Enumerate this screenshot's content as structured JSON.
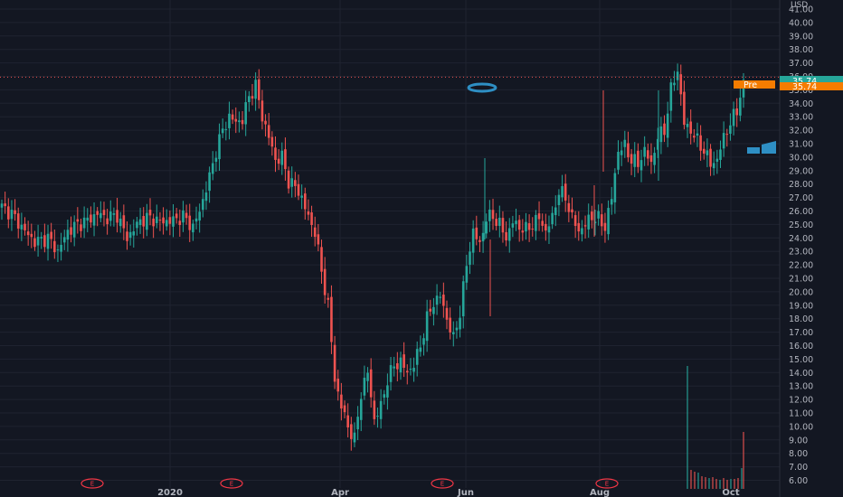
{
  "colors": {
    "background": "#131722",
    "grid": "#1f2330",
    "up": "#26a69a",
    "down": "#ef5350",
    "axis_text": "#b2b5be",
    "last_price_bg": "#26a69a",
    "pre_bg": "#f57c00",
    "earnings": "#f23645",
    "marker": "#2e8fc4"
  },
  "axis": {
    "unit_label": "USD",
    "y_ticks": [
      "41.00",
      "40.00",
      "39.00",
      "38.00",
      "37.00",
      "36.00",
      "35.00",
      "34.00",
      "33.00",
      "32.00",
      "31.00",
      "30.00",
      "29.00",
      "28.00",
      "27.00",
      "26.00",
      "25.00",
      "24.00",
      "23.00",
      "22.00",
      "21.00",
      "20.00",
      "19.00",
      "18.00",
      "17.00",
      "16.00",
      "15.00",
      "14.00",
      "13.00",
      "12.00",
      "11.00",
      "10.00",
      "9.00",
      "8.00",
      "7.00",
      "6.00"
    ],
    "x_ticks": [
      "2020",
      "Apr",
      "Jun",
      "Aug",
      "Oct"
    ]
  },
  "price_labels": {
    "last_price": "35.74",
    "pre_label": "Pre",
    "pre_price": "35.74"
  },
  "earnings_badges": [
    "E",
    "E",
    "E",
    "E"
  ],
  "chart_data": {
    "type": "candlestick",
    "y_unit": "USD",
    "ylim": [
      5.5,
      41.2
    ],
    "grid": true,
    "x_labels": [
      "2020",
      "Apr",
      "Jun",
      "Aug",
      "Oct"
    ],
    "last_price": 35.74,
    "anchors": [
      [
        0,
        26.3
      ],
      [
        3,
        25.8
      ],
      [
        7,
        24.5
      ],
      [
        10,
        23.7
      ],
      [
        14,
        24.0
      ],
      [
        17,
        23.0
      ],
      [
        20,
        24.5
      ],
      [
        23,
        25.0
      ],
      [
        26,
        25.3
      ],
      [
        29,
        25.8
      ],
      [
        32,
        25.5
      ],
      [
        35,
        25.7
      ],
      [
        38,
        24.0
      ],
      [
        42,
        25.3
      ],
      [
        45,
        25.5
      ],
      [
        48,
        25.2
      ],
      [
        52,
        25.3
      ],
      [
        55,
        25.6
      ],
      [
        58,
        24.8
      ],
      [
        60,
        26.0
      ],
      [
        63,
        28.5
      ],
      [
        65,
        30.5
      ],
      [
        67,
        32.0
      ],
      [
        69,
        33.0
      ],
      [
        71,
        32.6
      ],
      [
        73,
        32.8
      ],
      [
        75,
        34.5
      ],
      [
        77,
        35.3
      ],
      [
        79,
        33.0
      ],
      [
        81,
        31.5
      ],
      [
        83,
        29.8
      ],
      [
        85,
        30.0
      ],
      [
        87,
        28.2
      ],
      [
        89,
        27.8
      ],
      [
        91,
        27.0
      ],
      [
        93,
        25.5
      ],
      [
        95,
        24.5
      ],
      [
        97,
        21.5
      ],
      [
        99,
        19.0
      ],
      [
        101,
        13.5
      ],
      [
        103,
        11.5
      ],
      [
        105,
        10.0
      ],
      [
        107,
        9.0
      ],
      [
        109,
        12.5
      ],
      [
        111,
        14.0
      ],
      [
        113,
        10.5
      ],
      [
        115,
        11.5
      ],
      [
        117,
        13.5
      ],
      [
        119,
        14.5
      ],
      [
        121,
        14.8
      ],
      [
        123,
        14.0
      ],
      [
        125,
        14.6
      ],
      [
        127,
        16.0
      ],
      [
        129,
        18.0
      ],
      [
        131,
        19.2
      ],
      [
        133,
        19.7
      ],
      [
        135,
        18.0
      ],
      [
        137,
        16.5
      ],
      [
        139,
        18.5
      ],
      [
        141,
        22.0
      ],
      [
        143,
        24.5
      ],
      [
        145,
        23.5
      ],
      [
        147,
        25.5
      ],
      [
        149,
        25.6
      ],
      [
        151,
        25.0
      ],
      [
        153,
        24.0
      ],
      [
        155,
        25.2
      ],
      [
        157,
        24.8
      ],
      [
        159,
        24.6
      ],
      [
        161,
        25.0
      ],
      [
        163,
        25.5
      ],
      [
        165,
        24.5
      ],
      [
        167,
        25.5
      ],
      [
        169,
        27.5
      ],
      [
        171,
        27.0
      ],
      [
        173,
        25.5
      ],
      [
        175,
        24.5
      ],
      [
        177,
        25.0
      ],
      [
        179,
        25.6
      ],
      [
        181,
        25.4
      ],
      [
        183,
        24.8
      ],
      [
        185,
        27.0
      ],
      [
        187,
        30.5
      ],
      [
        189,
        30.8
      ],
      [
        191,
        29.8
      ],
      [
        193,
        29.5
      ],
      [
        195,
        30.5
      ],
      [
        197,
        29.5
      ],
      [
        199,
        31.5
      ],
      [
        201,
        32.0
      ],
      [
        203,
        35.0
      ],
      [
        205,
        36.5
      ],
      [
        207,
        32.5
      ],
      [
        209,
        32.0
      ],
      [
        211,
        31.2
      ],
      [
        213,
        30.5
      ],
      [
        215,
        29.5
      ],
      [
        217,
        29.8
      ],
      [
        219,
        31.5
      ],
      [
        221,
        32.5
      ],
      [
        223,
        33.5
      ],
      [
        225,
        35.74
      ]
    ],
    "series": [
      {
        "name": "Volume",
        "type": "bar",
        "note": "relative volume, unlabelled"
      }
    ]
  }
}
